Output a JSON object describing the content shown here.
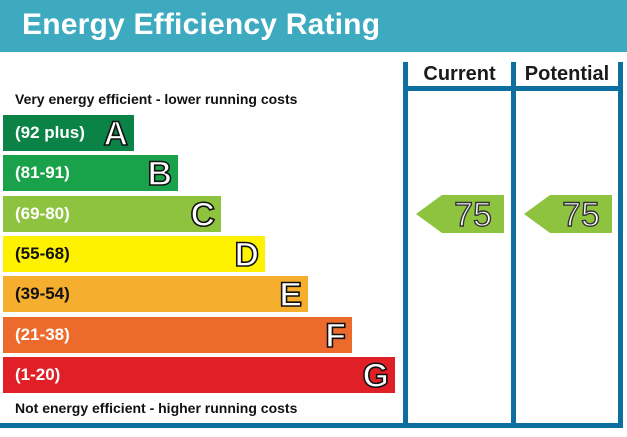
{
  "header": {
    "title": "Energy Efficiency Rating"
  },
  "columns": {
    "current": "Current",
    "potential": "Potential"
  },
  "notes": {
    "top": "Very energy efficient - lower running costs",
    "bottom": "Not energy efficient - higher running costs"
  },
  "chart_data": {
    "type": "bar",
    "title": "Energy Efficiency Rating",
    "bands": [
      {
        "letter": "A",
        "range": "(92 plus)",
        "color": "#0c8346"
      },
      {
        "letter": "B",
        "range": "(81-91)",
        "color": "#1aa24a"
      },
      {
        "letter": "C",
        "range": "(69-80)",
        "color": "#8dc33e"
      },
      {
        "letter": "D",
        "range": "(55-68)",
        "color": "#fff200"
      },
      {
        "letter": "E",
        "range": "(39-54)",
        "color": "#f5ae2d"
      },
      {
        "letter": "F",
        "range": "(21-38)",
        "color": "#ec6a2b"
      },
      {
        "letter": "G",
        "range": "(1-20)",
        "color": "#e01f26"
      }
    ],
    "current": {
      "value": "75",
      "band": "C"
    },
    "potential": {
      "value": "75",
      "band": "C"
    }
  }
}
